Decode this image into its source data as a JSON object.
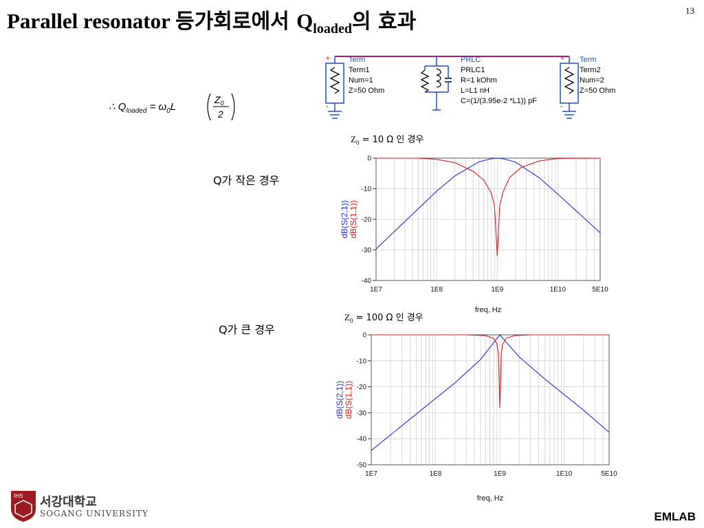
{
  "slide": {
    "title_prefix": "Parallel resonator ",
    "title_kr": "등가회로에서 ",
    "title_q": "Q",
    "title_sub": "loaded",
    "title_kr2": "의 효과",
    "page_number": "13",
    "footer": "EMLAB"
  },
  "formula": {
    "lhs": "∴ Q",
    "lhs_sub": "loaded",
    "mid": " = ω",
    "mid_sub": "0",
    "l": "L",
    "num": "Z",
    "num_sub": "0",
    "den": "2"
  },
  "notes": {
    "small_q": "Q가 작은 경우",
    "large_q": "Q가 큰 경우",
    "case1": "Z",
    "case1_sub": "0",
    "case1_rest": " = 10 Ω 인 경우",
    "case2": "Z",
    "case2_sub": "0",
    "case2_rest": " = 100 Ω 인 경우"
  },
  "schematic": {
    "term1": {
      "hd": "Term",
      "name": "Term1",
      "num": "Num=1",
      "z": "Z=50 Ohm"
    },
    "prlc": {
      "hd": "PRLC",
      "name": "PRLC1",
      "r": "R=1 kOhm",
      "l": "L=L1 nH",
      "c": "C=(1/(3.95e-2 *L1)) pF"
    },
    "term2": {
      "hd": "Term",
      "name": "Term2",
      "num": "Num=2",
      "z": "Z=50 Ohm"
    },
    "plus": "+",
    "minus": "-"
  },
  "logo": {
    "line1": "서강대학교",
    "line2": "SOGANG UNIVERSITY",
    "badge": "IHS"
  },
  "colors": {
    "s21": "#1f2fdd",
    "s11": "#e0161c",
    "schematic_wire": "#b0186e",
    "component_blue": "#1f4fbf"
  },
  "chart_data": [
    {
      "type": "line",
      "xscale": "log",
      "xlim": [
        10000000,
        50000000000
      ],
      "ylim": [
        -40,
        0
      ],
      "xticks": [
        "1E7",
        "1E8",
        "1E9",
        "1E10",
        "5E10"
      ],
      "yticks": [
        "0",
        "-10",
        "-20",
        "-30",
        "-40"
      ],
      "xlabel": "freq, Hz",
      "ylabel_series": [
        "dB(S(2,1))",
        "dB(S(1,1))"
      ],
      "grid": true,
      "series": [
        {
          "name": "dB(S(2,1))",
          "color": "#1f2fdd",
          "x": [
            10000000,
            20000000,
            50000000,
            100000000,
            200000000,
            500000000,
            800000000,
            1000000000,
            1250000000,
            2000000000,
            5000000000,
            10000000000,
            20000000000,
            50000000000
          ],
          "y": [
            -29.7,
            -24.0,
            -16.5,
            -10.8,
            -5.8,
            -1.2,
            -0.2,
            0.0,
            -0.2,
            -1.3,
            -6.5,
            -11.8,
            -17.2,
            -24.4
          ]
        },
        {
          "name": "dB(S(1,1))",
          "color": "#e0161c",
          "x": [
            10000000,
            50000000,
            100000000,
            200000000,
            400000000,
            600000000,
            800000000,
            900000000,
            1000000000,
            1100000000,
            1250000000,
            1600000000,
            2500000000,
            5000000000,
            10000000000,
            50000000000
          ],
          "y": [
            0.0,
            0.0,
            -0.4,
            -1.5,
            -4.3,
            -7.2,
            -11.5,
            -15.5,
            -32.0,
            -15.5,
            -11.0,
            -6.3,
            -3.0,
            -0.9,
            -0.1,
            0.0
          ]
        }
      ]
    },
    {
      "type": "line",
      "xscale": "log",
      "xlim": [
        10000000,
        50000000000
      ],
      "ylim": [
        -50,
        0
      ],
      "xticks": [
        "1E7",
        "1E8",
        "1E9",
        "1E10",
        "5E10"
      ],
      "yticks": [
        "0",
        "-10",
        "-20",
        "-30",
        "-40",
        "-50"
      ],
      "xlabel": "freq, Hz",
      "ylabel_series": [
        "dB(S(2,1))",
        "dB(S(1,1))"
      ],
      "grid": true,
      "series": [
        {
          "name": "dB(S(2,1))",
          "color": "#1f2fdd",
          "x": [
            10000000,
            20000000,
            50000000,
            100000000,
            200000000,
            500000000,
            800000000,
            1000000000,
            1250000000,
            2000000000,
            5000000000,
            10000000000,
            20000000000,
            50000000000
          ],
          "y": [
            -44.5,
            -38.5,
            -30.5,
            -24.5,
            -18.5,
            -9.5,
            -3.0,
            0.0,
            -2.8,
            -8.5,
            -17.0,
            -23.0,
            -29.0,
            -37.5
          ]
        },
        {
          "name": "dB(S(1,1))",
          "color": "#e0161c",
          "x": [
            10000000,
            100000000,
            300000000,
            600000000,
            800000000,
            900000000,
            950000000,
            1000000000,
            1050000000,
            1100000000,
            1250000000,
            1700000000,
            3000000000,
            10000000000,
            50000000000
          ],
          "y": [
            0.0,
            0.0,
            0.0,
            -0.3,
            -1.4,
            -3.5,
            -7.5,
            -28.0,
            -7.5,
            -3.8,
            -1.3,
            -0.3,
            0.0,
            0.0,
            0.0
          ]
        }
      ]
    }
  ]
}
